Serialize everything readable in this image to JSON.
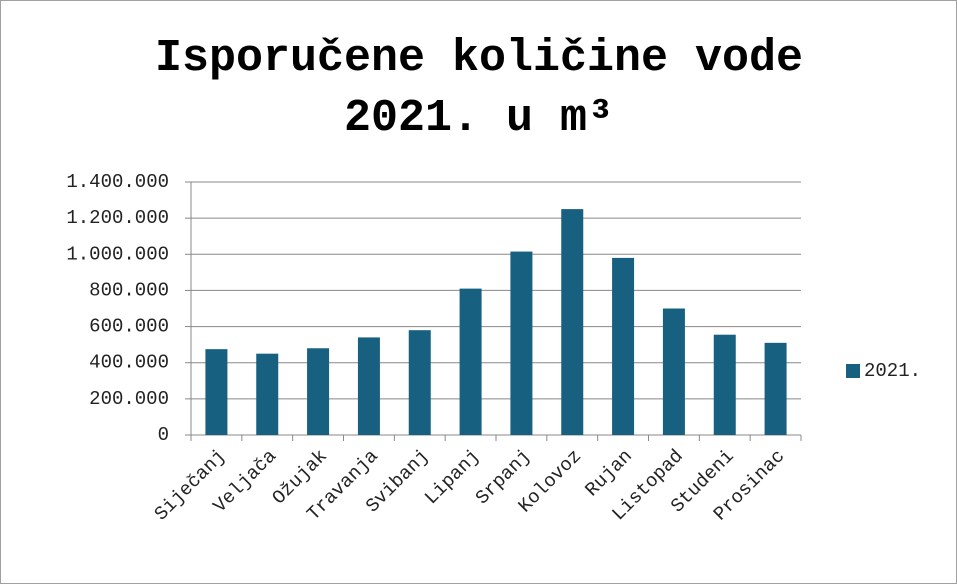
{
  "chart_data": {
    "type": "bar",
    "title": "Isporučene količine vode 2021. u m³",
    "categories": [
      "Siječanj",
      "Veljača",
      "Ožujak",
      "Travanja",
      "Svibanj",
      "Lipanj",
      "Srpanj",
      "Kolovoz",
      "Rujan",
      "Listopad",
      "Studeni",
      "Prosinac"
    ],
    "series": [
      {
        "name": "2021.",
        "color": "#17607f",
        "values": [
          475000,
          450000,
          480000,
          540000,
          580000,
          810000,
          1015000,
          1250000,
          980000,
          700000,
          555000,
          510000
        ]
      }
    ],
    "ylim": [
      0,
      1400000
    ],
    "yticks": [
      0,
      {
        "value": 200000,
        "label": "200.000"
      },
      {
        "value": 400000,
        "label": "400.000"
      },
      {
        "value": 600000,
        "label": "600.000"
      },
      {
        "value": 800000,
        "label": "800.000"
      },
      {
        "value": 1000000,
        "label": "1.000.000"
      },
      {
        "value": 1200000,
        "label": "1.200.000"
      },
      {
        "value": 1400000,
        "label": "1.400.000"
      }
    ],
    "grid": true,
    "legend": "right"
  }
}
